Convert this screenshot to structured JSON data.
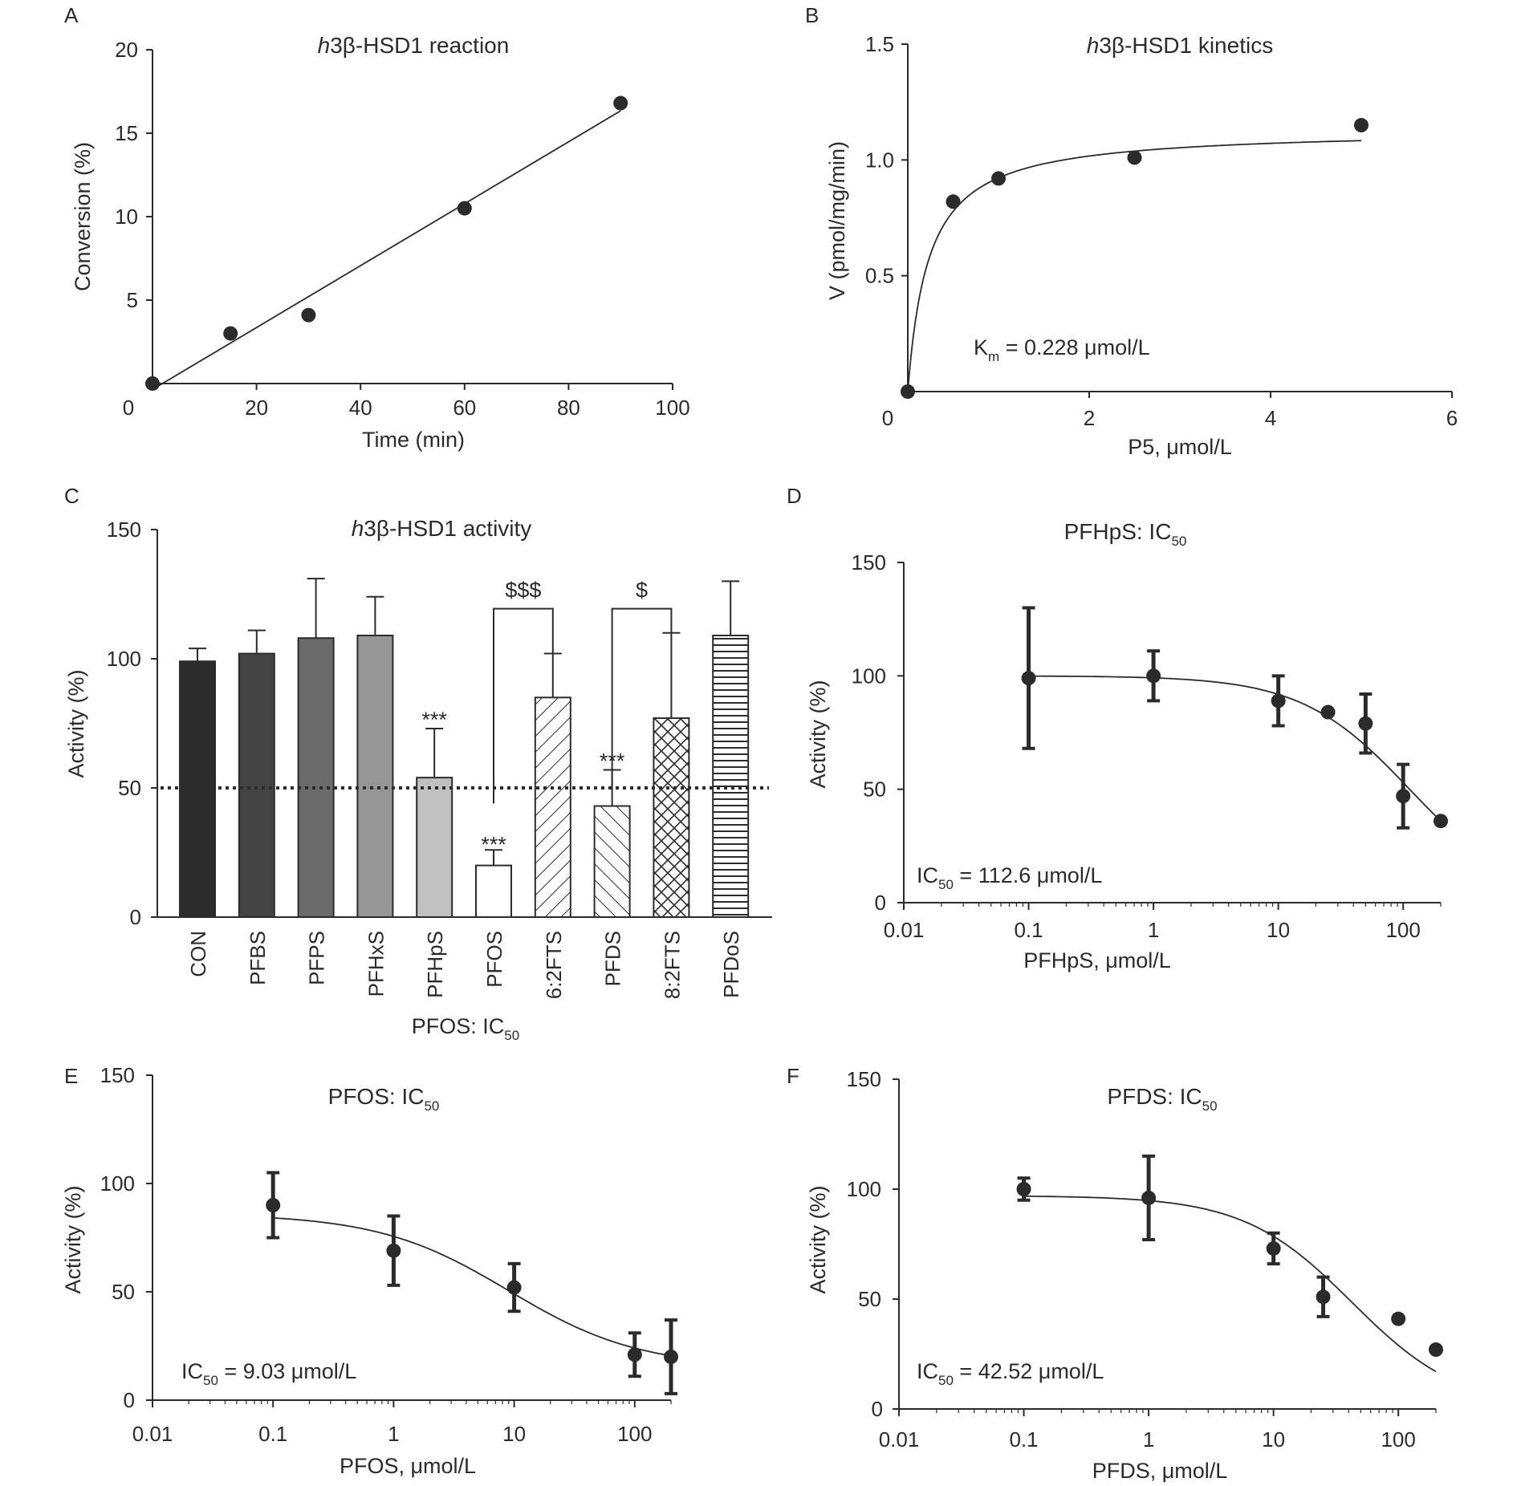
{
  "panels": {
    "a": {
      "letter": "A"
    },
    "b": {
      "letter": "B"
    },
    "c": {
      "letter": "C"
    },
    "d": {
      "letter": "D"
    },
    "e": {
      "letter": "E"
    },
    "f": {
      "letter": "F"
    }
  },
  "colors": {
    "ink": "#2b2b2b",
    "background": "#ffffff"
  },
  "chart_data": [
    {
      "panel": "A",
      "type": "scatter",
      "title_italic": "h",
      "title": "3β-HSD1  reaction",
      "xlabel": "Time (min)",
      "ylabel": "Conversion (%)",
      "xlim": [
        0,
        100
      ],
      "ylim": [
        0,
        20
      ],
      "xticks": [
        0,
        20,
        40,
        60,
        80,
        100
      ],
      "yticks": [
        0,
        5,
        10,
        15,
        20
      ],
      "x": [
        0,
        15,
        30,
        60,
        90
      ],
      "y": [
        0,
        3.0,
        4.1,
        10.5,
        16.8
      ],
      "fit": "linear",
      "fit_range": [
        0,
        90
      ],
      "grid": false
    },
    {
      "panel": "B",
      "type": "scatter",
      "title_italic": "h",
      "title": "3β-HSD1 kinetics",
      "xlabel": "P5, μmol/L",
      "ylabel": "V (pmol/mg/min)",
      "xlim": [
        0,
        6
      ],
      "ylim": [
        0,
        1.5
      ],
      "xticks": [
        0,
        2,
        4,
        6
      ],
      "yticks": [
        0.5,
        1.0,
        1.5
      ],
      "ytick_labels": [
        "0.5",
        "1.0",
        "1.5"
      ],
      "x": [
        0,
        0.5,
        1,
        2.5,
        5
      ],
      "y": [
        0,
        0.82,
        0.92,
        1.01,
        1.15
      ],
      "fit": "michaelis-menten",
      "km": 0.228,
      "vmax": 1.15,
      "annotation_main": "K",
      "annotation_sub": "m",
      "annotation_rest": " = 0.228 μmol/L",
      "grid": false
    },
    {
      "panel": "C",
      "type": "bar",
      "title_italic": "h",
      "title": "3β-HSD1 activity",
      "ylabel": "Activity (%)",
      "caption_main": "PFOS: IC",
      "caption_sub": "50",
      "ylim": [
        0,
        150
      ],
      "yticks": [
        0,
        50,
        100,
        150
      ],
      "reference_line": 50,
      "categories": [
        "CON",
        "PFBS",
        "PFPS",
        "PFHxS",
        "PFHpS",
        "PFOS",
        "6:2FTS",
        "PFDS",
        "8:2FTS",
        "PFDoS"
      ],
      "values": [
        99,
        102,
        108,
        109,
        54,
        20,
        85,
        43,
        77,
        109
      ],
      "errors": [
        5,
        9,
        23,
        15,
        19,
        6,
        17,
        14,
        33,
        21
      ],
      "fills": [
        "#2c2c2c",
        "#444444",
        "#6b6b6b",
        "#969696",
        "#c0c0c0",
        "#ffffff",
        "pattern-back",
        "pattern-fwd",
        "pattern-cross",
        "pattern-horiz"
      ],
      "significance": [
        "",
        "",
        "",
        "",
        "***",
        "***",
        "",
        "***",
        "",
        ""
      ],
      "brackets": [
        {
          "from": "PFOS",
          "to": "6:2FTS",
          "label": "$$$",
          "level": 120
        },
        {
          "from": "PFDS",
          "to": "8:2FTS",
          "label": "$",
          "level": 120
        }
      ],
      "grid": false
    },
    {
      "panel": "D",
      "type": "scatter",
      "title_main": "PFHpS: IC",
      "title_sub": "50",
      "xlabel": "PFHpS, μmol/L",
      "ylabel": "Activity (%)",
      "xscale": "log",
      "xlim": [
        0.01,
        200
      ],
      "ylim": [
        0,
        150
      ],
      "xticks": [
        0.01,
        0.1,
        1,
        10,
        100
      ],
      "xtick_labels": [
        "0.01",
        "0.1",
        "1",
        "10",
        "100"
      ],
      "yticks": [
        0,
        50,
        100,
        150
      ],
      "x": [
        0.1,
        1,
        10,
        25,
        50,
        100,
        200
      ],
      "y": [
        99,
        100,
        89,
        84,
        79,
        47,
        36
      ],
      "errors": [
        31,
        11,
        11,
        0,
        13,
        14,
        0
      ],
      "ic50": 112.6,
      "fit_top": 100,
      "fit_bottom": 0,
      "fit_hill": 1,
      "annotation_main": "IC",
      "annotation_sub": "50",
      "annotation_rest": " = 112.6 μmol/L",
      "grid": false
    },
    {
      "panel": "E",
      "type": "scatter",
      "title_main": "PFOS: IC",
      "title_sub": "50",
      "xlabel": "PFOS, μmol/L",
      "ylabel": "Activity (%)",
      "xscale": "log",
      "xlim": [
        0.01,
        200
      ],
      "ylim": [
        0,
        150
      ],
      "xticks": [
        0.01,
        0.1,
        1,
        10,
        100
      ],
      "xtick_labels": [
        "0.01",
        "0.1",
        "1",
        "10",
        "100"
      ],
      "yticks": [
        0,
        50,
        100,
        150
      ],
      "x": [
        0.1,
        1,
        10,
        100,
        200
      ],
      "y": [
        90,
        69,
        52,
        21,
        20
      ],
      "errors": [
        15,
        16,
        11,
        10,
        17
      ],
      "ic50": 9.03,
      "fit_top": 86,
      "fit_bottom": 15,
      "fit_hill": 0.8,
      "annotation_main": "IC",
      "annotation_sub": "50",
      "annotation_rest": " = 9.03 μmol/L",
      "grid": false
    },
    {
      "panel": "F",
      "type": "scatter",
      "title_main": "PFDS: IC",
      "title_sub": "50",
      "xlabel": "PFDS, μmol/L",
      "ylabel": "Activity (%)",
      "xscale": "log",
      "xlim": [
        0.01,
        200
      ],
      "ylim": [
        0,
        150
      ],
      "xticks": [
        0.01,
        0.1,
        1,
        10,
        100
      ],
      "xtick_labels": [
        "0.01",
        "0.1",
        "1",
        "10",
        "100"
      ],
      "yticks": [
        0,
        50,
        100,
        150
      ],
      "x": [
        0.1,
        1,
        10,
        25,
        100,
        200
      ],
      "y": [
        100,
        96,
        73,
        51,
        41,
        27
      ],
      "errors": [
        5,
        19,
        7,
        9,
        0,
        0
      ],
      "ic50": 42.52,
      "fit_top": 97,
      "fit_bottom": 0,
      "fit_hill": 1,
      "annotation_main": "IC",
      "annotation_sub": "50",
      "annotation_rest": " = 42.52 μmol/L",
      "grid": false
    }
  ]
}
